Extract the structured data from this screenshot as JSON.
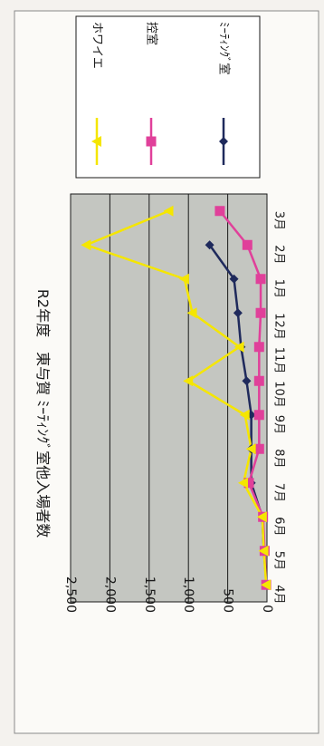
{
  "chart_data": {
    "type": "line",
    "title": "R2年度　東与賀 ﾐｰﾃｨﾝｸﾞ室他入場者数",
    "categories": [
      "4月",
      "5月",
      "6月",
      "7月",
      "8月",
      "9月",
      "10月",
      "11月",
      "12月",
      "1月",
      "2月",
      "3月"
    ],
    "ylim": [
      0,
      2500
    ],
    "yticks": [
      "0",
      "500",
      "1,000",
      "1,500",
      "2,000",
      "2,500"
    ],
    "ytick_values": [
      0,
      500,
      1000,
      1500,
      2000,
      2500
    ],
    "grid": true,
    "legend_position": "right",
    "series": [
      {
        "name": "ﾐｰﾃｨﾝｸﾞ室",
        "color": "#1f2a5c",
        "marker": "diamond",
        "values": [
          5,
          40,
          60,
          200,
          200,
          200,
          260,
          330,
          370,
          420,
          730,
          null
        ]
      },
      {
        "name": "控室",
        "color": "#e0409a",
        "marker": "square",
        "values": [
          10,
          30,
          50,
          230,
          100,
          100,
          100,
          100,
          80,
          80,
          250,
          600
        ]
      },
      {
        "name": "ホワイエ",
        "color": "#f5e600",
        "marker": "triangle",
        "values": [
          10,
          40,
          60,
          300,
          200,
          280,
          1000,
          350,
          950,
          1050,
          2300,
          1250
        ]
      }
    ]
  }
}
